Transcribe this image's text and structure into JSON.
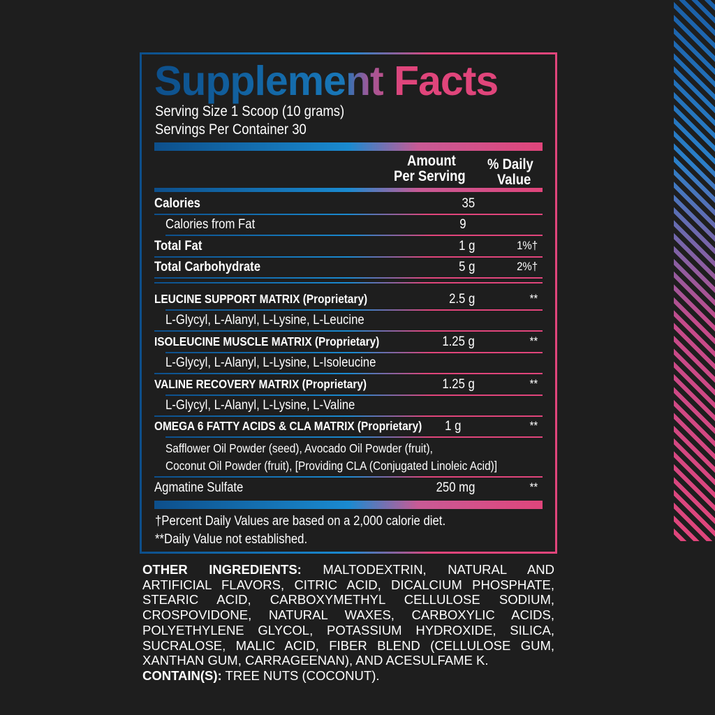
{
  "title": "Supplement Facts",
  "serving_size": "Serving Size 1 Scoop (10 grams)",
  "servings_per_container": "Servings Per Container 30",
  "header": {
    "amount_1": "Amount",
    "amount_2": "Per Serving",
    "dv_1": "% Daily",
    "dv_2": "Value"
  },
  "rows": [
    {
      "name": "Calories",
      "amount": "35",
      "dv": ""
    },
    {
      "name": "Calories from Fat",
      "amount": "9",
      "dv": ""
    },
    {
      "name": "Total Fat",
      "amount": "1 g",
      "dv": "1%†"
    },
    {
      "name": "Total Carbohydrate",
      "amount": "5 g",
      "dv": "2%†"
    },
    {
      "name": "LEUCINE SUPPORT MATRIX (Proprietary)",
      "amount": "2.5 g",
      "dv": "**",
      "sub": "L-Glycyl, L-Alanyl, L-Lysine, L-Leucine"
    },
    {
      "name": "ISOLEUCINE MUSCLE MATRIX (Proprietary)",
      "amount": "1.25 g",
      "dv": "**",
      "sub": "L-Glycyl, L-Alanyl, L-Lysine, L-Isoleucine"
    },
    {
      "name": "VALINE RECOVERY MATRIX (Proprietary)",
      "amount": "1.25 g",
      "dv": "**",
      "sub": "L-Glycyl, L-Alanyl, L-Lysine, L-Valine"
    },
    {
      "name": "OMEGA 6 FATTY ACIDS  & CLA MATRIX (Proprietary)",
      "amount": "1 g",
      "dv": "**",
      "sub": "Safflower Oil Powder (seed), Avocado Oil Powder (fruit),",
      "sub2": "Coconut Oil Powder (fruit), [Providing CLA (Conjugated Linoleic Acid)]"
    },
    {
      "name": "Agmatine Sulfate",
      "amount": "250 mg",
      "dv": "**"
    }
  ],
  "footnotes": [
    "†Percent Daily Values are based on a 2,000 calorie diet.",
    "**Daily Value not established."
  ],
  "other_label": "OTHER INGREDIENTS:",
  "other_text": " MALTODEXTRIN, NATURAL AND ARTIFICIAL FLAVORS, CITRIC ACID, DICALCIUM PHOSPHATE, STEARIC ACID, CARBOXYMETHYL CELLULOSE SODIUM, CROSPOVIDONE, NATURAL WAXES, CARBOXYLIC ACIDS, POLYETHYLENE GLYCOL, POTASSIUM HYDROXIDE, SILICA, SUCRALOSE, MALIC ACID, FIBER BLEND (CELLULOSE GUM, XANTHAN GUM, CARRAGEENAN), AND ACESULFAME K.",
  "contains_label": "CONTAIN(S):",
  "contains_text": " TREE NUTS (COCONUT).",
  "colors": {
    "blue": "#0d4f8b",
    "light_blue": "#1a8ad0",
    "pink": "#e0457b",
    "background": "#1e1e1e"
  }
}
